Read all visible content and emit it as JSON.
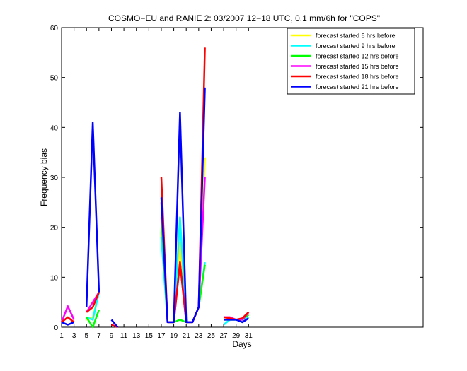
{
  "chart_data": {
    "type": "line",
    "title": "COSMO−EU and RANIE 2: 03/2007 12−18 UTC, 0.1 mm/6h for \"COPS\"",
    "xlabel": "Days",
    "ylabel": "Frequency bias",
    "xlim": [
      1,
      59
    ],
    "ylim": [
      0,
      60
    ],
    "xticks": [
      1,
      3,
      5,
      7,
      9,
      11,
      13,
      15,
      17,
      19,
      21,
      23,
      25,
      27,
      29,
      31
    ],
    "yticks": [
      0,
      10,
      20,
      30,
      40,
      50,
      60
    ],
    "legend_position": "top-right",
    "grid": false,
    "x": [
      1,
      2,
      3,
      4,
      5,
      6,
      7,
      8,
      9,
      10,
      11,
      12,
      13,
      14,
      15,
      16,
      17,
      18,
      19,
      20,
      21,
      22,
      23,
      24,
      25,
      26,
      27,
      28,
      29,
      30,
      31
    ],
    "series": [
      {
        "name": "forecast started 6 hrs before",
        "color": "#ffff00",
        "values": [
          null,
          null,
          null,
          null,
          1.5,
          2,
          7,
          null,
          null,
          null,
          null,
          null,
          null,
          null,
          null,
          null,
          20,
          1,
          1,
          17,
          1,
          1,
          4,
          34,
          null,
          null,
          2,
          2,
          1.5,
          1.5,
          2.5
        ]
      },
      {
        "name": "forecast started 9 hrs before",
        "color": "#00ffff",
        "values": [
          null,
          null,
          null,
          null,
          2,
          1.5,
          7,
          null,
          null,
          null,
          null,
          null,
          null,
          null,
          null,
          null,
          18,
          1,
          1,
          22,
          1,
          1,
          4,
          13,
          null,
          null,
          0.5,
          1.5,
          1.5,
          1,
          2
        ]
      },
      {
        "name": "forecast started 12 hrs before",
        "color": "#00ff00",
        "values": [
          null,
          null,
          null,
          null,
          2,
          0,
          3.5,
          null,
          null,
          null,
          null,
          null,
          null,
          null,
          null,
          null,
          22,
          1,
          1,
          1.5,
          1,
          1,
          4,
          12.5,
          null,
          null,
          1.5,
          1.5,
          1.5,
          1.5,
          2.5
        ]
      },
      {
        "name": "forecast started 15 hrs before",
        "color": "#ff00ff",
        "values": [
          1,
          4.2,
          1.5,
          null,
          3,
          5,
          7,
          null,
          0.5,
          0,
          null,
          null,
          null,
          null,
          null,
          null,
          25,
          1,
          1,
          13,
          1,
          1,
          4,
          30,
          null,
          null,
          2,
          2,
          1.5,
          1.5,
          3
        ]
      },
      {
        "name": "forecast started 18 hrs before",
        "color": "#ff0000",
        "values": [
          1,
          2,
          1,
          null,
          3,
          4,
          7,
          null,
          0.5,
          0,
          null,
          null,
          null,
          null,
          null,
          null,
          30,
          1,
          1,
          13,
          1,
          1,
          4,
          56,
          null,
          null,
          2,
          1.8,
          1.5,
          1.8,
          3
        ]
      },
      {
        "name": "forecast started 21 hrs before",
        "color": "#0000ff",
        "values": [
          1,
          0.5,
          1,
          null,
          4,
          41,
          7,
          null,
          1.5,
          0,
          null,
          null,
          null,
          null,
          null,
          null,
          26,
          1,
          1,
          43,
          1,
          1,
          4,
          48,
          null,
          null,
          1.5,
          1.5,
          1.5,
          1,
          1.8
        ]
      }
    ]
  }
}
